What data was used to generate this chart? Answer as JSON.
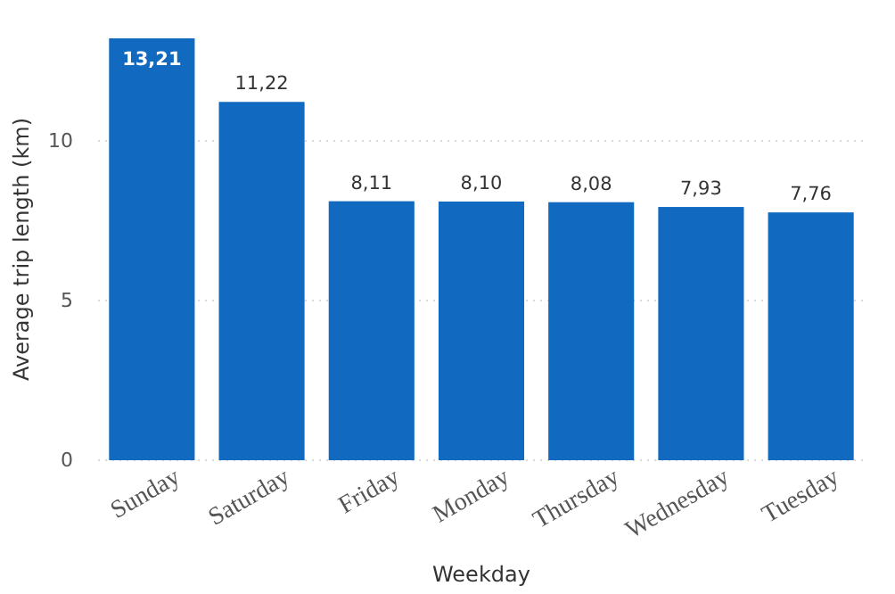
{
  "chart_data": {
    "type": "bar",
    "xlabel": "Weekday",
    "ylabel": "Average trip length (km)",
    "categories": [
      "Sunday",
      "Saturday",
      "Friday",
      "Monday",
      "Thursday",
      "Wednesday",
      "Tuesday"
    ],
    "values": [
      13.21,
      11.22,
      8.11,
      8.1,
      8.08,
      7.93,
      7.76
    ],
    "value_labels": [
      "13,21",
      "11,22",
      "8,11",
      "8,10",
      "8,08",
      "7,93",
      "7,76"
    ],
    "color": "#1169c0",
    "ylim": [
      0,
      13.21
    ],
    "yticks": [
      0,
      5,
      10
    ],
    "grid": "y"
  }
}
